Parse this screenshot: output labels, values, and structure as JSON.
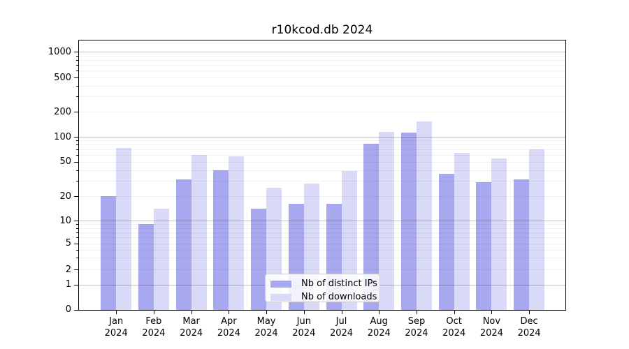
{
  "chart_data": {
    "type": "bar",
    "title": "r10kcod.db 2024",
    "categories": [
      "Jan",
      "Feb",
      "Mar",
      "Apr",
      "May",
      "Jun",
      "Jul",
      "Aug",
      "Sep",
      "Oct",
      "Nov",
      "Dec"
    ],
    "year_label": "2024",
    "series": [
      {
        "name": "Nb of distinct IPs",
        "color": "#a8a8f0",
        "values": [
          20,
          9,
          31,
          40,
          14,
          16,
          16,
          83,
          113,
          36,
          29,
          31
        ]
      },
      {
        "name": "Nb of downloads",
        "color": "#d9d9f8",
        "values": [
          74,
          14,
          60,
          58,
          25,
          28,
          39,
          114,
          152,
          64,
          55,
          70
        ]
      }
    ],
    "y_ticks": [
      0,
      1,
      2,
      5,
      10,
      20,
      50,
      100,
      200,
      500,
      1000
    ],
    "yscale": "symlog",
    "ylim": [
      0,
      1380
    ],
    "grid": "major-and-minor-horizontal",
    "legend_position": "lower-center"
  }
}
